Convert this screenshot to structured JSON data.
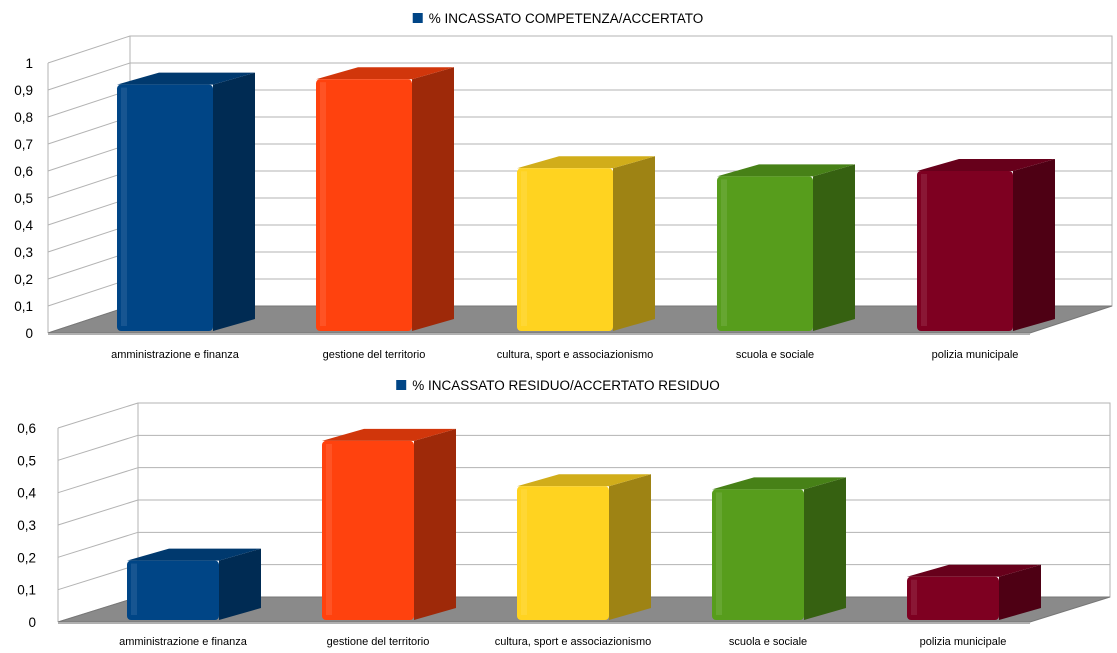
{
  "chart_data": [
    {
      "type": "bar",
      "legend": "% INCASSATO COMPETENZA/ACCERTATO",
      "legend_position": "top",
      "legend_color": "#004586",
      "categories": [
        "amministrazione e finanza",
        "gestione del territorio",
        "cultura, sport e associazionismo",
        "scuola e sociale",
        "polizia municipale"
      ],
      "values": [
        0.92,
        0.94,
        0.61,
        0.58,
        0.6
      ],
      "colors": [
        "#004586",
        "#ff420e",
        "#ffd320",
        "#579d1c",
        "#7e0021"
      ],
      "ylim": [
        0,
        1
      ],
      "yticks": [
        "0",
        "0,1",
        "0,2",
        "0,3",
        "0,4",
        "0,5",
        "0,6",
        "0,7",
        "0,8",
        "0,9",
        "1"
      ],
      "grid": true,
      "style": "3d"
    },
    {
      "type": "bar",
      "legend": "% INCASSATO RESIDUO/ACCERTATO RESIDUO",
      "legend_position": "top",
      "legend_color": "#004586",
      "categories": [
        "amministrazione e finanza",
        "gestione del territorio",
        "cultura, sport e associazionismo",
        "scuola e sociale",
        "polizia municipale"
      ],
      "values": [
        0.19,
        0.56,
        0.42,
        0.41,
        0.14
      ],
      "colors": [
        "#004586",
        "#ff420e",
        "#ffd320",
        "#579d1c",
        "#7e0021"
      ],
      "ylim": [
        0,
        0.6
      ],
      "yticks": [
        "0",
        "0,1",
        "0,2",
        "0,3",
        "0,4",
        "0,5",
        "0,6"
      ],
      "grid": true,
      "style": "3d"
    }
  ]
}
